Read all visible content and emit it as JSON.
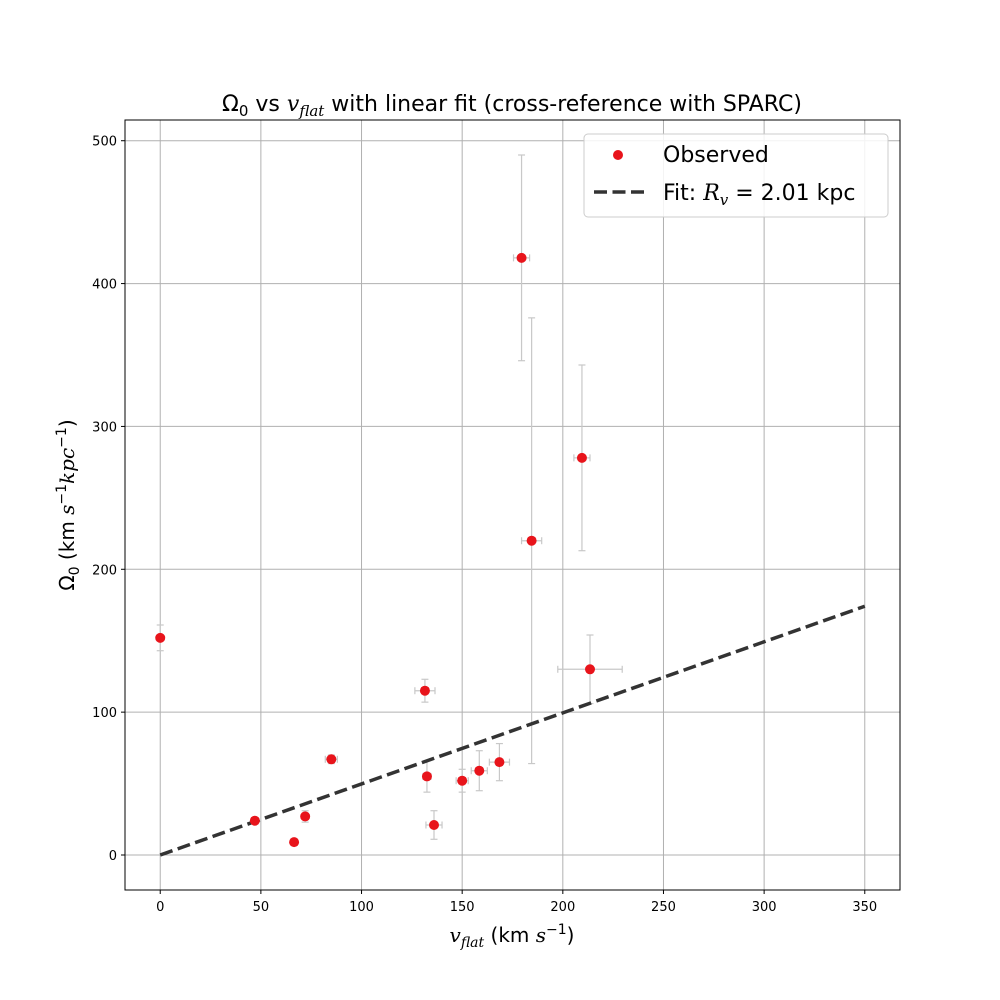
{
  "chart_data": {
    "type": "scatter",
    "title": {
      "omega": "Ω",
      "omega_sub": "0",
      "vs": " vs ",
      "v": "v",
      "v_sub": "flat",
      "rest": " with linear fit (cross-reference with SPARC)"
    },
    "xlabel": {
      "v": "v",
      "v_sub": "flat",
      "units_pre": " (km ",
      "s": "s",
      "s_exp": "−1",
      "units_post": ")"
    },
    "ylabel": {
      "omega": "Ω",
      "omega_sub": "0",
      "units_pre": " (km ",
      "s": "s",
      "s_exp": "−1",
      "kpc": "kpc",
      "kpc_exp": "−1",
      "units_post": ")"
    },
    "xlim": [
      -17.5,
      367.5
    ],
    "ylim": [
      -24.5,
      514.5
    ],
    "xticks": [
      0,
      50,
      100,
      150,
      200,
      250,
      300,
      350
    ],
    "yticks": [
      0,
      100,
      200,
      300,
      400,
      500
    ],
    "grid": true,
    "legend": {
      "placement": "top-right",
      "observed_label": "Observed",
      "fit_prefix": "Fit: ",
      "fit_R": "R",
      "fit_sub": "v",
      "fit_value": " = 2.01 kpc"
    },
    "observed": [
      {
        "x": 0,
        "y": 152,
        "xerr": 0,
        "yerr": 9
      },
      {
        "x": 47,
        "y": 24,
        "xerr": 0,
        "yerr": 1
      },
      {
        "x": 66.5,
        "y": 9,
        "xerr": 0,
        "yerr": 1
      },
      {
        "x": 72,
        "y": 27,
        "xerr": 1.5,
        "yerr": 4
      },
      {
        "x": 85,
        "y": 67,
        "xerr": 3,
        "yerr": 3
      },
      {
        "x": 131.5,
        "y": 115,
        "xerr": 5,
        "yerr": 8
      },
      {
        "x": 132.5,
        "y": 55,
        "xerr": 2,
        "yerr": 11
      },
      {
        "x": 136,
        "y": 21,
        "xerr": 4,
        "yerr": 10
      },
      {
        "x": 150,
        "y": 52,
        "xerr": 3,
        "yerr": 8
      },
      {
        "x": 158.5,
        "y": 59,
        "xerr": 4,
        "yerr": 14
      },
      {
        "x": 168.5,
        "y": 65,
        "xerr": 5,
        "yerr": 13
      },
      {
        "x": 179.5,
        "y": 418,
        "xerr": 4,
        "yerr": 72
      },
      {
        "x": 184.5,
        "y": 220,
        "xerr": 5,
        "yerr": 156
      },
      {
        "x": 209.5,
        "y": 278,
        "xerr": 4,
        "yerr": 65
      },
      {
        "x": 213.5,
        "y": 130,
        "xerr": 16,
        "yerr": 24
      }
    ],
    "fit": {
      "slope": 0.4975,
      "intercept": 0,
      "x_range": [
        0,
        350
      ]
    },
    "colors": {
      "observed": "#e8141b",
      "errorbar": "#c8c8c8",
      "fit": "#333333",
      "grid": "#b0b0b0",
      "axes": "#000000"
    }
  }
}
